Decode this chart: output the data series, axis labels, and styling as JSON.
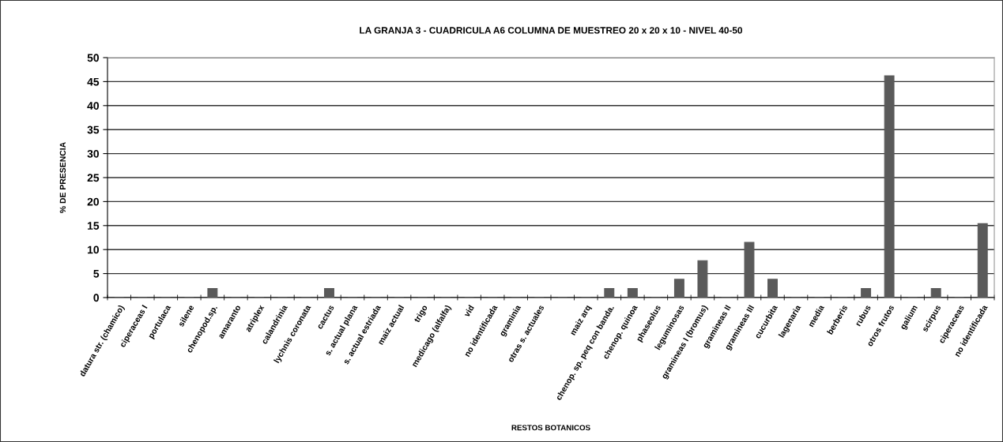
{
  "chart_data": {
    "type": "bar",
    "title": "LA GRANJA 3 - CUADRICULA A6 COLUMNA DE MUESTREO 20 x 20 x 10 - NIVEL 40-50",
    "xlabel": "RESTOS BOTANICOS",
    "ylabel": "% DE PRESENCIA",
    "categories": [
      "datura str. (chamico)",
      "ciperaceas I",
      "portulaca",
      "silene",
      "chenopod.sp.",
      "amaranto",
      "atriplex",
      "calandrinia",
      "lychnis coronata",
      "cactus",
      "s. actual plana",
      "s. actual estriada",
      "maiz actual",
      "trigo",
      "medicago (alfalfa)",
      "vid",
      "no identificada",
      "graminia",
      "otras s. actuales",
      null,
      "maiz arq",
      "chenop. sp. peq con banda.",
      "chenop. quinoa",
      "phaseolus",
      "leguminosas",
      "gramineas I (bromus)",
      "gramineas II",
      "gramineas III",
      "cucurbita",
      "lagenaria",
      "media",
      "berberis",
      "rubus",
      "otros frutos",
      "galium",
      "scirpus",
      "ciperaceas",
      "no identificada"
    ],
    "values": [
      0,
      0,
      0,
      0,
      1.9,
      0,
      0,
      0,
      0,
      1.9,
      0,
      0,
      0,
      0,
      0,
      0,
      0,
      0,
      0,
      0,
      0,
      1.9,
      1.9,
      0,
      3.8,
      7.7,
      0,
      11.5,
      3.8,
      0,
      0,
      0,
      1.9,
      46.2,
      0,
      1.9,
      0,
      15.4
    ],
    "color": "#5a5a5a",
    "ylim": [
      0,
      50
    ],
    "yticks": [
      0,
      5,
      10,
      15,
      20,
      25,
      30,
      35,
      40,
      45,
      50
    ],
    "grid": "y"
  }
}
